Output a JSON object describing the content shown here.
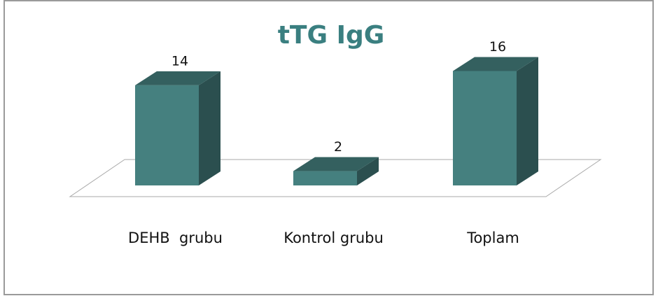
{
  "chart_data": {
    "type": "bar3d",
    "title": "tTG IgG",
    "categories": [
      "DEHB  grubu",
      "Kontrol grubu",
      "Toplam"
    ],
    "values": [
      14,
      2,
      16
    ],
    "color": "#45807f"
  }
}
